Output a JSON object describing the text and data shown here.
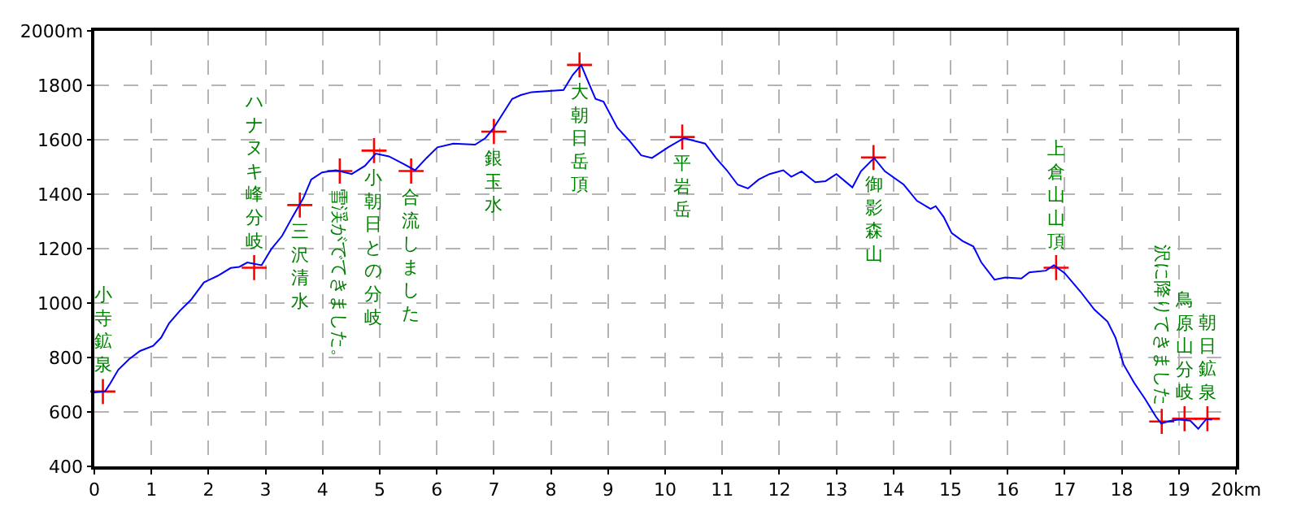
{
  "chart_data": {
    "type": "line",
    "xlim": [
      0,
      20
    ],
    "ylim": [
      400,
      2000
    ],
    "xticks": [
      0,
      1,
      2,
      3,
      4,
      5,
      6,
      7,
      8,
      9,
      10,
      11,
      12,
      13,
      14,
      15,
      16,
      17,
      18,
      19,
      {
        "value": 20,
        "label": "20km"
      }
    ],
    "yticks": [
      400,
      600,
      800,
      1000,
      1200,
      1400,
      1600,
      1800,
      {
        "value": 2000,
        "label": "2000m"
      }
    ],
    "grid": true,
    "series": [
      {
        "color": "#0000ff",
        "marker": "none",
        "x": [
          0,
          0.19,
          0.28,
          0.42,
          0.61,
          0.8,
          1.03,
          1.17,
          1.31,
          1.5,
          1.69,
          1.92,
          2.16,
          2.39,
          2.54,
          2.68,
          2.93,
          3.1,
          3.29,
          3.47,
          3.66,
          3.8,
          3.99,
          4.23,
          4.51,
          4.74,
          4.93,
          5.16,
          5.4,
          5.62,
          5.82,
          6.01,
          6.29,
          6.67,
          6.85,
          6.99,
          7.32,
          7.47,
          7.66,
          8.22,
          8.38,
          8.53,
          8.64,
          8.78,
          8.92,
          9.16,
          9.39,
          9.58,
          9.77,
          10.05,
          10.33,
          10.7,
          10.89,
          11.08,
          11.27,
          11.45,
          11.64,
          11.83,
          12.07,
          12.21,
          12.39,
          12.63,
          12.81,
          13.0,
          13.28,
          13.43,
          13.66,
          13.85,
          14.18,
          14.41,
          14.65,
          14.74,
          14.88,
          15.02,
          15.21,
          15.4,
          15.54,
          15.77,
          15.96,
          16.24,
          16.38,
          16.67,
          16.81,
          17.0,
          17.28,
          17.52,
          17.75,
          17.89,
          18.03,
          18.22,
          18.41,
          18.6,
          18.69,
          18.87,
          19.01,
          19.2,
          19.34,
          19.48,
          19.58
        ],
        "values": [
          672,
          676,
          705,
          755,
          794,
          824,
          843,
          873,
          926,
          972,
          1011,
          1076,
          1100,
          1129,
          1133,
          1149,
          1139,
          1198,
          1247,
          1316,
          1385,
          1454,
          1480,
          1488,
          1474,
          1504,
          1549,
          1539,
          1513,
          1488,
          1533,
          1572,
          1586,
          1582,
          1606,
          1641,
          1750,
          1764,
          1775,
          1783,
          1838,
          1874,
          1819,
          1750,
          1740,
          1645,
          1592,
          1543,
          1533,
          1572,
          1606,
          1586,
          1533,
          1488,
          1435,
          1421,
          1454,
          1474,
          1488,
          1464,
          1484,
          1444,
          1448,
          1474,
          1425,
          1484,
          1533,
          1484,
          1435,
          1376,
          1346,
          1356,
          1316,
          1257,
          1228,
          1208,
          1149,
          1086,
          1094,
          1090,
          1113,
          1119,
          1139,
          1110,
          1041,
          976,
          932,
          873,
          775,
          706,
          647,
          582,
          558,
          568,
          572,
          568,
          538,
          574,
          572
        ]
      },
      {
        "type": "scatter",
        "color": "#ff0000",
        "marker": "cross",
        "x": [
          0.15,
          2.8,
          3.6,
          4.3,
          4.9,
          5.55,
          7.0,
          8.5,
          10.3,
          13.65,
          16.85,
          18.7,
          19.1,
          19.5
        ],
        "values": [
          675,
          1130,
          1360,
          1485,
          1560,
          1485,
          1630,
          1875,
          1610,
          1535,
          1130,
          565,
          575,
          575
        ]
      }
    ],
    "annotations": [
      {
        "text": "小寺鉱泉",
        "x": 0.15,
        "y": 675
      },
      {
        "text": "ハナヌキ峰分岐",
        "x": 2.8,
        "y": 1130
      },
      {
        "text": "三沢清水",
        "x": 3.6,
        "y": 1360
      },
      {
        "text": "雪渓がでてきました。",
        "x": 4.3,
        "y": 1485
      },
      {
        "text": "小朝日との分岐",
        "x": 4.9,
        "y": 1560
      },
      {
        "text": "合流しました",
        "x": 5.55,
        "y": 1485
      },
      {
        "text": "銀玉水",
        "x": 7.0,
        "y": 1630
      },
      {
        "text": "大朝日岳頂",
        "x": 8.5,
        "y": 1875
      },
      {
        "text": "平岩岳",
        "x": 10.3,
        "y": 1610
      },
      {
        "text": "御影森山",
        "x": 13.65,
        "y": 1535
      },
      {
        "text": "上倉山山頂",
        "x": 16.85,
        "y": 1130
      },
      {
        "text": "沢に降りてきました",
        "x": 18.7,
        "y": 565
      },
      {
        "text": "鳥原山分岐",
        "x": 19.1,
        "y": 575
      },
      {
        "text": "朝日鉱泉",
        "x": 19.5,
        "y": 575
      }
    ]
  }
}
